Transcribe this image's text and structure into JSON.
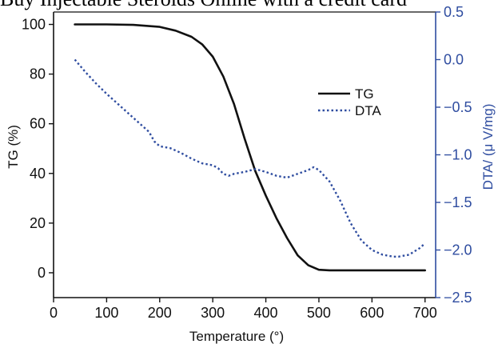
{
  "page": {
    "top_caption": "Buy Injectable Steroids Online with a credit card"
  },
  "chart_data": {
    "type": "line",
    "xlabel": "Temperature (°)",
    "ylabel": "TG (%)",
    "y2label": "DTA/ (μ V/mg)",
    "xlim": [
      0,
      720
    ],
    "ylim": [
      -10,
      105
    ],
    "y2lim": [
      -2.5,
      0.5
    ],
    "xticks": [
      0,
      100,
      200,
      300,
      400,
      500,
      600,
      700
    ],
    "yticks": [
      0,
      20,
      40,
      60,
      80,
      100
    ],
    "y2ticks": [
      0.5,
      0.0,
      -0.5,
      -1.0,
      -1.5,
      -2.0,
      -2.5
    ],
    "y2tick_labels": [
      "0.5",
      "0.0",
      "−0.5",
      "−1.0",
      "−1.5",
      "−2.0",
      "−2.5"
    ],
    "legend_position": "top-right",
    "series": [
      {
        "name": "TG",
        "axis": "left",
        "color": "#111111",
        "style": "solid",
        "x": [
          40,
          100,
          150,
          200,
          230,
          260,
          280,
          300,
          320,
          340,
          360,
          380,
          400,
          420,
          440,
          460,
          480,
          500,
          520,
          560,
          600,
          650,
          700
        ],
        "y": [
          100,
          100,
          99.8,
          99,
          97.5,
          95,
          92,
          87,
          79,
          68,
          54,
          41,
          31,
          22,
          14,
          7,
          3,
          1.2,
          1,
          1,
          1,
          1,
          1
        ]
      },
      {
        "name": "DTA",
        "axis": "right",
        "color": "#2f4da0",
        "style": "dotted",
        "x": [
          40,
          60,
          80,
          100,
          120,
          140,
          160,
          180,
          190,
          200,
          220,
          240,
          260,
          280,
          300,
          310,
          320,
          330,
          340,
          360,
          380,
          400,
          420,
          440,
          460,
          480,
          490,
          500,
          520,
          540,
          560,
          580,
          600,
          620,
          640,
          650,
          670,
          690,
          700
        ],
        "y": [
          0.0,
          -0.13,
          -0.25,
          -0.36,
          -0.46,
          -0.56,
          -0.66,
          -0.76,
          -0.86,
          -0.91,
          -0.93,
          -0.98,
          -1.04,
          -1.09,
          -1.11,
          -1.14,
          -1.2,
          -1.22,
          -1.2,
          -1.18,
          -1.15,
          -1.18,
          -1.22,
          -1.24,
          -1.2,
          -1.16,
          -1.13,
          -1.16,
          -1.28,
          -1.48,
          -1.72,
          -1.9,
          -2.0,
          -2.05,
          -2.07,
          -2.07,
          -2.05,
          -1.98,
          -1.93
        ]
      }
    ]
  }
}
